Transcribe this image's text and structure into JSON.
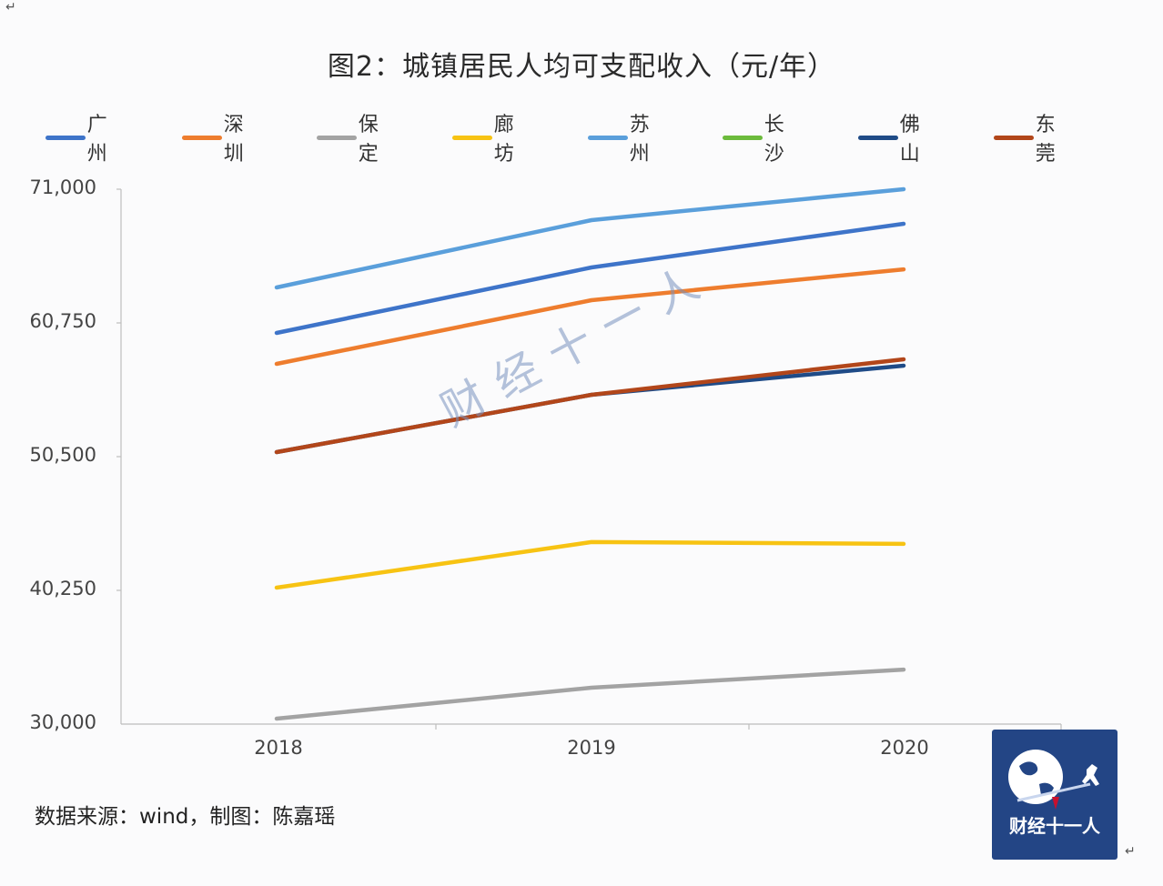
{
  "page": {
    "corner_marks": [
      "↵",
      "↵"
    ],
    "title": "图2：城镇居民人均可支配收入（元/年）",
    "source_note": "数据来源：wind，制图：陈嘉瑶",
    "watermark": "财经十一人",
    "logo_text": "财经十一人"
  },
  "legend": [
    {
      "label": "广州",
      "color": "#3e74c9"
    },
    {
      "label": "深圳",
      "color": "#ee7d2e"
    },
    {
      "label": "保定",
      "color": "#a3a3a3"
    },
    {
      "label": "廊坊",
      "color": "#f7c313"
    },
    {
      "label": "苏州",
      "color": "#5a9fdb"
    },
    {
      "label": "长沙",
      "color": "#6cbb3c"
    },
    {
      "label": "佛山",
      "color": "#1f4b87"
    },
    {
      "label": "东莞",
      "color": "#b2461a"
    }
  ],
  "axis": {
    "y_ticks": [
      "71,000",
      "60,750",
      "50,500",
      "40,250",
      "30,000"
    ],
    "x_ticks": [
      "2018",
      "2019",
      "2020"
    ]
  },
  "chart_data": {
    "type": "line",
    "title": "图2：城镇居民人均可支配收入（元/年）",
    "xlabel": "",
    "ylabel": "",
    "x": [
      "2018",
      "2019",
      "2020"
    ],
    "ylim": [
      30000,
      71000
    ],
    "y_ticks": [
      30000,
      40250,
      50500,
      60750,
      71000
    ],
    "grid": false,
    "legend_position": "top",
    "series": [
      {
        "name": "广州",
        "color": "#3e74c9",
        "values": [
          59980,
          65000,
          68350
        ]
      },
      {
        "name": "深圳",
        "color": "#ee7d2e",
        "values": [
          57610,
          62490,
          64860
        ]
      },
      {
        "name": "保定",
        "color": "#a3a3a3",
        "values": [
          30420,
          32790,
          34180
        ]
      },
      {
        "name": "廊坊",
        "color": "#f7c313",
        "values": [
          40460,
          43950,
          43810
        ]
      },
      {
        "name": "苏州",
        "color": "#5a9fdb",
        "values": [
          63470,
          68630,
          71000
        ]
      },
      {
        "name": "长沙",
        "color": "#6cbb3c",
        "values": [
          null,
          null,
          null
        ]
      },
      {
        "name": "佛山",
        "color": "#1f4b87",
        "values": [
          50850,
          55240,
          57470
        ]
      },
      {
        "name": "东莞",
        "color": "#b2461a",
        "values": [
          50850,
          55240,
          57960
        ]
      }
    ],
    "annotations": [
      "数据来源：wind，制图：陈嘉瑶"
    ]
  }
}
